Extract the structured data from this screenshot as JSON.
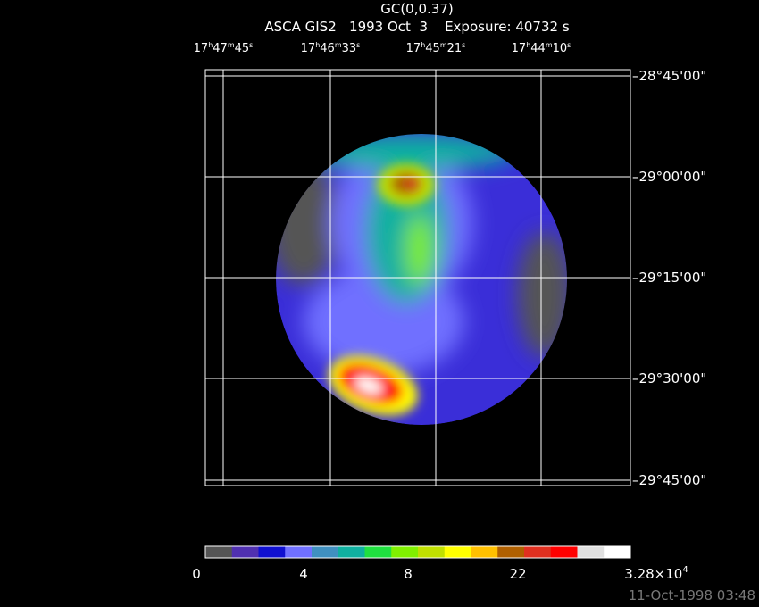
{
  "title": "GC(0,0.37)",
  "subtitle": "ASCA GIS2   1993 Oct  3    Exposure: 40732 s",
  "ra_labels": [
    [
      "17",
      "h",
      "47",
      "m",
      "45",
      "s"
    ],
    [
      "17",
      "h",
      "46",
      "m",
      "33",
      "s"
    ],
    [
      "17",
      "h",
      "45",
      "m",
      "21",
      "s"
    ],
    [
      "17",
      "h",
      "44",
      "m",
      "10",
      "s"
    ]
  ],
  "dec_labels": [
    "–28°45'00\"",
    "–29°00'00\"",
    "–29°15'00\"",
    "–29°30'00\"",
    "–29°45'00\""
  ],
  "colorbar": {
    "colors": [
      "#555555",
      "#5030b0",
      "#1010d0",
      "#7070ff",
      "#4090c0",
      "#10b0a0",
      "#20e040",
      "#80f000",
      "#c0e000",
      "#ffff00",
      "#ffc000",
      "#b06000",
      "#e03020",
      "#ff0000",
      "#e0e0e0",
      "#ffffff"
    ],
    "labels": [
      "0",
      "4",
      "8",
      "22"
    ],
    "max_label": [
      "3.28×10",
      "4"
    ]
  },
  "timestamp": "11-Oct-1998 03:48"
}
